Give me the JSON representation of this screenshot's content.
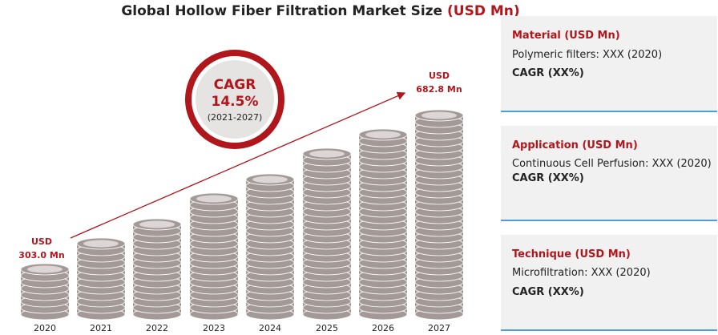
{
  "title": {
    "main": "Global Hollow Fiber Filtration Market Size",
    "unit": "(USD Mn)"
  },
  "chart_data": {
    "type": "bar",
    "title": "Global Hollow Fiber Filtration Market Size (USD Mn)",
    "categories": [
      "2020",
      "2021",
      "2022",
      "2023",
      "2024",
      "2025",
      "2026",
      "2027"
    ],
    "values": [
      303.0,
      347,
      397,
      455,
      521,
      596,
      682.8,
      682.8
    ],
    "first_label": {
      "line1": "USD",
      "line2": "303.0 Mn"
    },
    "last_label": {
      "line1": "USD",
      "line2": "682.8 Mn"
    },
    "trend": "increasing"
  },
  "cagr": {
    "label": "CAGR",
    "value": "14.5%",
    "period": "(2021-2027)"
  },
  "panels": [
    {
      "heading": "Material (USD Mn)",
      "line": "Polymeric filters: XXX (2020)",
      "cagr": "CAGR (XX%)"
    },
    {
      "heading": "Application (USD Mn)",
      "line": "Continuous Cell Perfusion: XXX (2020)",
      "cagr": "CAGR (XX%)"
    },
    {
      "heading": "Technique (USD Mn)",
      "line": "Microfiltration: XXX (2020)",
      "cagr": "CAGR (XX%)"
    }
  ],
  "colors": {
    "accent": "#b0161c",
    "coin_side": "#a39a98",
    "coin_top": "#dcd7d6",
    "panel_line": "#4a9fd6"
  }
}
